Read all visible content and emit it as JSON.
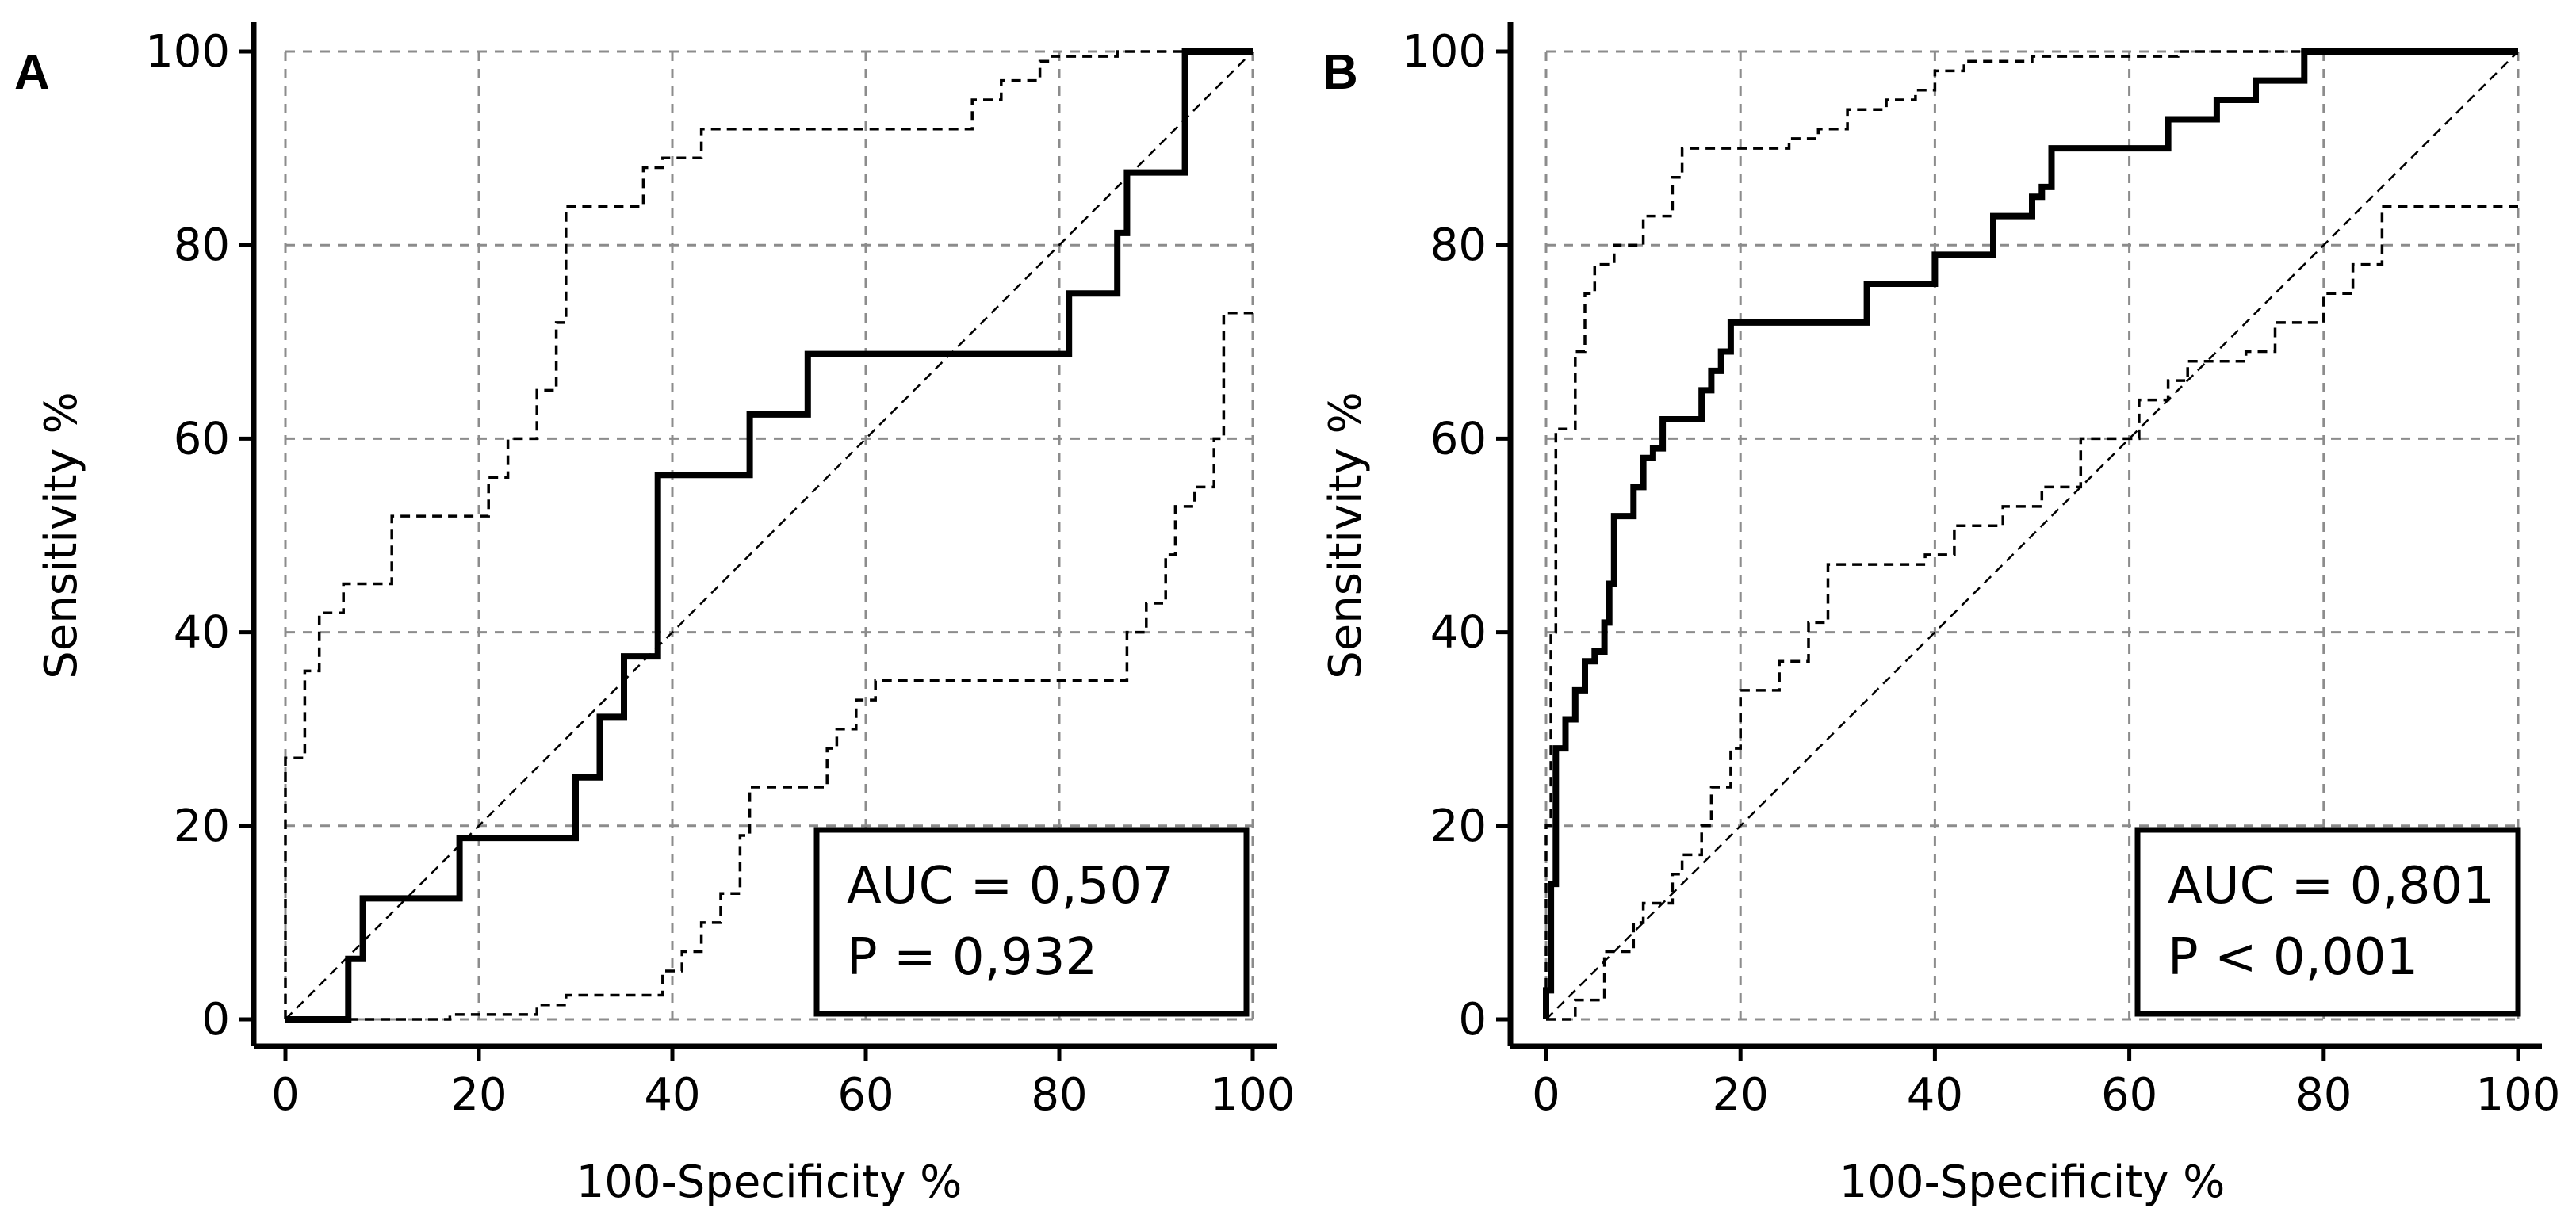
{
  "chart_data": [
    {
      "panel_label": "A",
      "type": "line",
      "title": "",
      "xlabel": "100-Specificity %",
      "ylabel": "Sensitivity %",
      "xlim": [
        0,
        100
      ],
      "ylim": [
        0,
        100
      ],
      "xticks": [
        "0",
        "20",
        "40",
        "60",
        "80",
        "100"
      ],
      "yticks": [
        "0",
        "20",
        "40",
        "60",
        "80",
        "100"
      ],
      "grid": true,
      "annotation": {
        "auc_text": "AUC = 0,507",
        "p_text": "P = 0,932",
        "placement": "bottom-right"
      },
      "series": [
        {
          "name": "ROC curve",
          "style": "solid-thick",
          "x": [
            0,
            6.5,
            6.5,
            8,
            8,
            10,
            10,
            18,
            18,
            30,
            30,
            32.5,
            32.5,
            35,
            35,
            37.5,
            37.5,
            38.5,
            38.5,
            47,
            47,
            48,
            48,
            54,
            54,
            81,
            81,
            86,
            86,
            87,
            87,
            93,
            93,
            100
          ],
          "y": [
            0,
            0,
            6.25,
            6.25,
            12.5,
            12.5,
            12.5,
            12.5,
            18.75,
            18.75,
            25,
            25,
            31.25,
            31.25,
            37.5,
            37.5,
            37.5,
            37.5,
            56.25,
            56.25,
            56.25,
            56.25,
            62.5,
            62.5,
            68.75,
            68.75,
            75,
            75,
            81.25,
            81.25,
            87.5,
            87.5,
            100,
            100
          ]
        },
        {
          "name": "Upper 95% CI",
          "style": "dashed",
          "x": [
            0,
            0,
            2,
            2,
            3.5,
            3.5,
            6,
            6,
            11,
            11,
            21,
            21,
            23,
            23,
            26,
            26,
            28,
            28,
            29,
            29,
            37,
            37,
            39,
            39,
            43,
            43,
            48,
            48,
            71,
            71,
            74,
            74,
            78,
            78,
            79,
            79,
            86,
            86,
            92,
            92,
            100
          ],
          "y": [
            0,
            27,
            27,
            36,
            36,
            42,
            42,
            45,
            45,
            52,
            52,
            56,
            56,
            60,
            60,
            65,
            65,
            72,
            72,
            84,
            84,
            88,
            88,
            89,
            89,
            92,
            92,
            92,
            92,
            95,
            95,
            97,
            97,
            99,
            99,
            99.5,
            99.5,
            100,
            100,
            100,
            100
          ]
        },
        {
          "name": "Lower 95% CI",
          "style": "dashed",
          "x": [
            0,
            17,
            17,
            26,
            26,
            29,
            29,
            39,
            39,
            41,
            41,
            43,
            43,
            45,
            45,
            47,
            47,
            48,
            48,
            56,
            56,
            57,
            57,
            59,
            59,
            61,
            61,
            64,
            64,
            87,
            87,
            89,
            89,
            91,
            91,
            92,
            92,
            94,
            94,
            96,
            96,
            97,
            97,
            100
          ],
          "y": [
            0,
            0,
            0.5,
            0.5,
            1.5,
            1.5,
            2.5,
            2.5,
            5,
            5,
            7,
            7,
            10,
            10,
            13,
            13,
            19,
            19,
            24,
            24,
            28,
            28,
            30,
            30,
            33,
            33,
            35,
            35,
            35,
            35,
            40,
            40,
            43,
            43,
            48,
            48,
            53,
            53,
            55,
            55,
            60,
            60,
            73,
            73
          ]
        },
        {
          "name": "Reference line",
          "style": "dashed-thin",
          "x": [
            0,
            100
          ],
          "y": [
            0,
            100
          ]
        }
      ]
    },
    {
      "panel_label": "B",
      "type": "line",
      "title": "",
      "xlabel": "100-Specificity %",
      "ylabel": "Sensitivity %",
      "xlim": [
        0,
        100
      ],
      "ylim": [
        0,
        100
      ],
      "xticks": [
        "0",
        "20",
        "40",
        "60",
        "80",
        "100"
      ],
      "yticks": [
        "0",
        "20",
        "40",
        "60",
        "80",
        "100"
      ],
      "grid": true,
      "annotation": {
        "auc_text": "AUC = 0,801",
        "p_text": "P < 0,001",
        "placement": "bottom-right"
      },
      "series": [
        {
          "name": "ROC curve",
          "style": "solid-thick",
          "x": [
            0,
            0,
            0.5,
            0.5,
            1,
            1,
            2,
            2,
            3,
            3,
            4,
            4,
            5,
            5,
            6,
            6,
            6.5,
            6.5,
            7,
            7,
            9,
            9,
            10,
            10,
            11,
            11,
            12,
            12,
            16,
            16,
            17,
            17,
            18,
            18,
            19,
            19,
            33,
            33,
            40,
            40,
            46,
            46,
            50,
            50,
            51,
            51,
            52,
            52,
            64,
            64,
            69,
            69,
            73,
            73,
            78,
            78,
            100
          ],
          "y": [
            0,
            3,
            3,
            14,
            14,
            28,
            28,
            31,
            31,
            34,
            34,
            37,
            37,
            38,
            38,
            41,
            41,
            45,
            45,
            52,
            52,
            55,
            55,
            58,
            58,
            59,
            59,
            62,
            62,
            65,
            65,
            67,
            67,
            69,
            69,
            72,
            72,
            76,
            76,
            79,
            79,
            83,
            83,
            85,
            85,
            86,
            86,
            90,
            90,
            93,
            93,
            95,
            95,
            97,
            97,
            100,
            100
          ]
        },
        {
          "name": "Upper 95% CI",
          "style": "dashed",
          "x": [
            0,
            0,
            0.5,
            0.5,
            1,
            1,
            3,
            3,
            4,
            4,
            5,
            5,
            7,
            7,
            10,
            10,
            13,
            13,
            14,
            14,
            25,
            25,
            28,
            28,
            31,
            31,
            35,
            35,
            38,
            38,
            40,
            40,
            43,
            43,
            50,
            50,
            65,
            65,
            100
          ],
          "y": [
            0,
            20,
            20,
            40,
            40,
            61,
            61,
            69,
            69,
            75,
            75,
            78,
            78,
            80,
            80,
            83,
            83,
            87,
            87,
            90,
            90,
            91,
            91,
            92,
            92,
            94,
            94,
            95,
            95,
            96,
            96,
            98,
            98,
            99,
            99,
            99.5,
            99.5,
            100,
            100
          ]
        },
        {
          "name": "Lower 95% CI",
          "style": "dashed",
          "x": [
            0,
            3,
            3,
            6,
            6,
            9,
            9,
            10,
            10,
            13,
            13,
            14,
            14,
            16,
            16,
            17,
            17,
            19,
            19,
            20,
            20,
            24,
            24,
            27,
            27,
            29,
            29,
            39,
            39,
            42,
            42,
            47,
            47,
            51,
            51,
            55,
            55,
            61,
            61,
            64,
            64,
            66,
            66,
            72,
            72,
            75,
            75,
            76,
            76,
            80,
            80,
            83,
            83,
            86,
            86,
            100,
            100
          ],
          "y": [
            0,
            0,
            2,
            2,
            7,
            7,
            10,
            10,
            12,
            12,
            15,
            15,
            17,
            17,
            20,
            20,
            24,
            24,
            28,
            28,
            34,
            34,
            37,
            37,
            41,
            41,
            47,
            47,
            48,
            48,
            51,
            51,
            53,
            53,
            55,
            55,
            60,
            60,
            64,
            64,
            66,
            66,
            68,
            68,
            69,
            69,
            72,
            72,
            72,
            72,
            75,
            75,
            78,
            78,
            84,
            84,
            84
          ]
        },
        {
          "name": "Reference line",
          "style": "dashed-thin",
          "x": [
            0,
            100
          ],
          "y": [
            0,
            100
          ]
        }
      ]
    }
  ]
}
